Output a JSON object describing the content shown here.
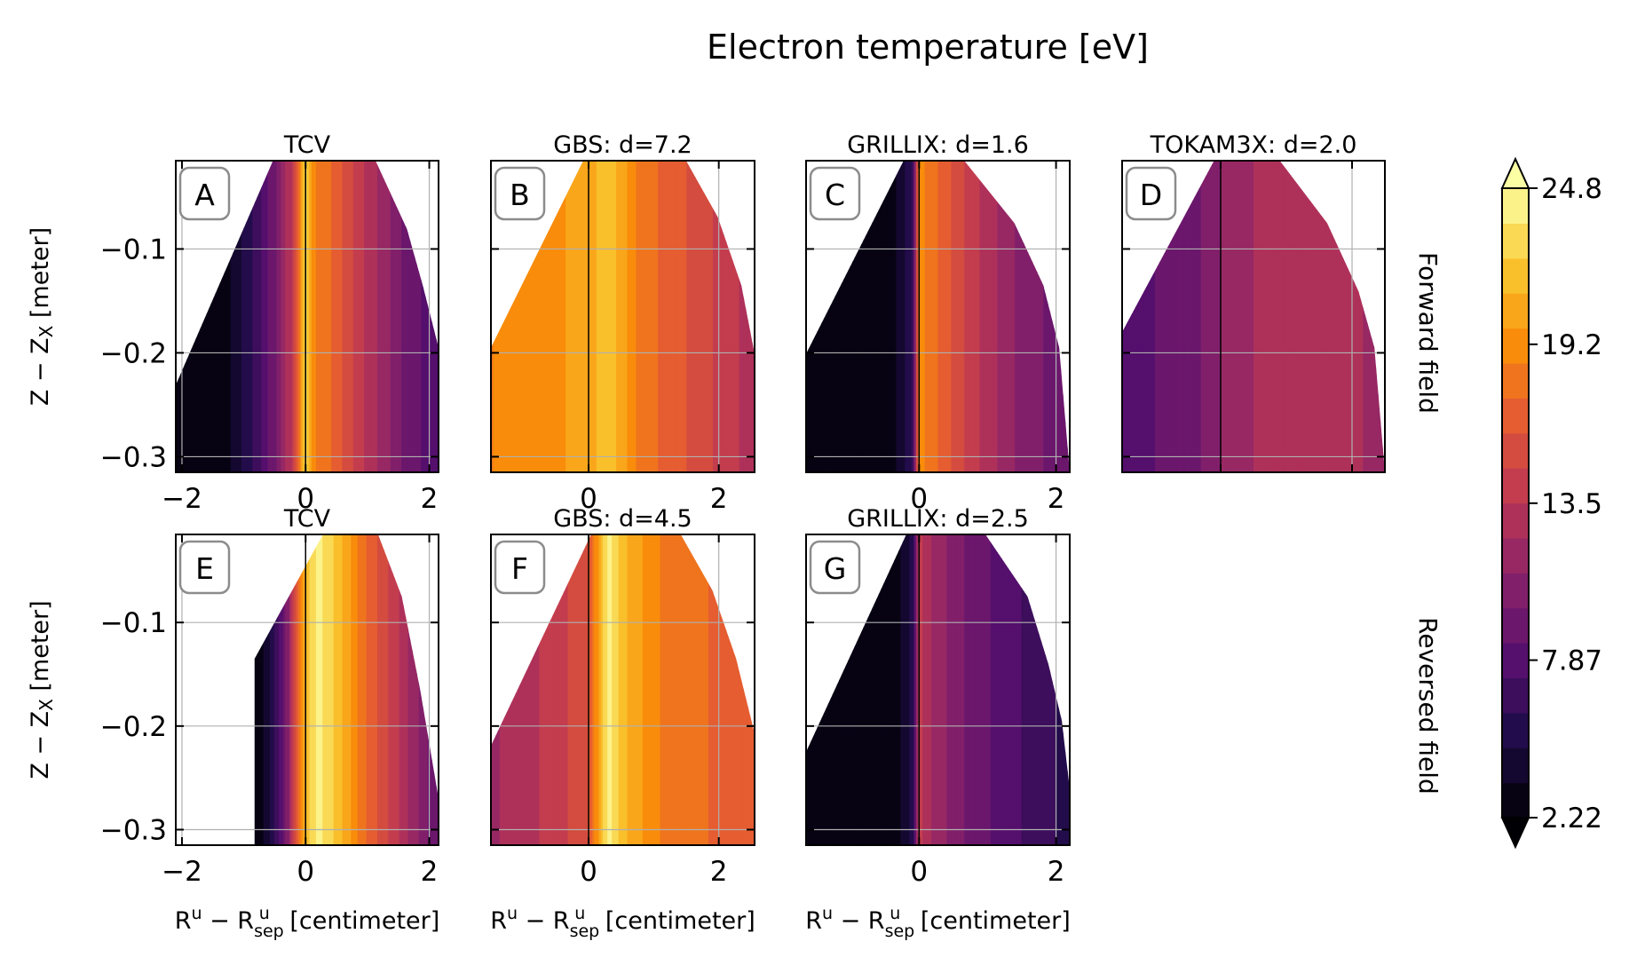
{
  "figure": {
    "title": "Electron temperature [eV]",
    "row_labels": [
      "Forward field",
      "Reversed field"
    ]
  },
  "colorbar": {
    "tick_labels": [
      "24.8",
      "19.2",
      "13.5",
      "7.87",
      "2.22"
    ],
    "tick_values": [
      24.8,
      19.2,
      13.5,
      7.87,
      2.22
    ],
    "min": 2.22,
    "max": 24.8,
    "levels": 18,
    "colormap": "inferno",
    "extend": "both"
  },
  "chart_data": [
    {
      "type": "heatmap",
      "panel": "A",
      "title": "TCV",
      "row": 0,
      "col": 0,
      "xlim": [
        -2.1,
        2.15
      ],
      "ylim": [
        -0.315,
        -0.015
      ],
      "x_tick_labels": [
        "−2",
        "0",
        "2"
      ],
      "x_ticks": [
        -2,
        0,
        2
      ],
      "y_tick_labels": [
        "−0.1",
        "−0.2",
        "−0.3"
      ],
      "y_ticks": [
        -0.1,
        -0.2,
        -0.3
      ],
      "ylabel": "Z − Z",
      "ylabel_sub": "X",
      "ylabel_tail": " [meter]",
      "profile": {
        "x": [
          -2.0,
          -1.2,
          -0.8,
          -0.5,
          -0.2,
          0.0,
          0.15,
          0.4,
          0.8,
          1.2,
          1.6,
          2.0
        ],
        "Te": [
          2.4,
          3.5,
          6.5,
          9.5,
          14.0,
          22.5,
          18.5,
          17.5,
          14.5,
          12.0,
          9.5,
          8.0
        ]
      }
    },
    {
      "type": "heatmap",
      "panel": "B",
      "title": "GBS: d=7.2",
      "row": 0,
      "col": 1,
      "xlim": [
        -1.5,
        2.55
      ],
      "ylim": [
        -0.315,
        -0.015
      ],
      "x_tick_labels": [
        "0",
        "2"
      ],
      "x_ticks": [
        0,
        2
      ],
      "profile": {
        "x": [
          -1.5,
          -0.5,
          0.0,
          0.3,
          0.8,
          1.5,
          2.5
        ],
        "Te": [
          18.5,
          19.5,
          20.5,
          22.0,
          18.0,
          16.0,
          13.0
        ]
      }
    },
    {
      "type": "heatmap",
      "panel": "C",
      "title": "GRILLIX: d=1.6",
      "row": 0,
      "col": 2,
      "xlim": [
        -1.65,
        2.2
      ],
      "ylim": [
        -0.315,
        -0.015
      ],
      "x_tick_labels": [
        "0",
        "2"
      ],
      "x_ticks": [
        0,
        2
      ],
      "profile": {
        "x": [
          -1.6,
          -0.4,
          -0.1,
          0.0,
          0.3,
          0.8,
          1.4,
          2.2
        ],
        "Te": [
          2.3,
          2.6,
          6.0,
          19.0,
          17.0,
          14.0,
          11.0,
          8.5
        ]
      }
    },
    {
      "type": "heatmap",
      "panel": "D",
      "title": "TOKAM3X: d=2.0",
      "row": 0,
      "col": 3,
      "xlim": [
        -1.5,
        2.5
      ],
      "ylim": [
        -0.315,
        -0.015
      ],
      "profile": {
        "x": [
          -1.5,
          -0.5,
          0.0,
          0.6,
          1.2,
          2.5
        ],
        "Te": [
          8.0,
          9.0,
          11.0,
          12.5,
          13.0,
          12.0
        ]
      }
    },
    {
      "type": "heatmap",
      "panel": "E",
      "title": "TCV",
      "row": 1,
      "col": 0,
      "xlim": [
        -2.1,
        2.15
      ],
      "ylim": [
        -0.315,
        -0.015
      ],
      "x_tick_labels": [
        "−2",
        "0",
        "2"
      ],
      "x_ticks": [
        -2,
        0,
        2
      ],
      "y_tick_labels": [
        "−0.1",
        "−0.2",
        "−0.3"
      ],
      "y_ticks": [
        -0.1,
        -0.2,
        -0.3
      ],
      "xlabel": "R",
      "xlabel_sup": "u",
      "xlabel_mid": " − R",
      "xlabel_sub": "sep",
      "xlabel_sup2": "u",
      "xlabel_tail": " [centimeter]",
      "ylabel": "Z − Z",
      "ylabel_sub": "X",
      "ylabel_tail": " [meter]",
      "profile": {
        "x": [
          -0.9,
          -0.6,
          -0.3,
          0.0,
          0.2,
          0.5,
          0.9,
          1.3,
          1.7,
          2.0
        ],
        "Te": [
          2.3,
          4.0,
          10.0,
          21.5,
          24.0,
          22.0,
          18.0,
          15.0,
          12.0,
          9.5
        ]
      }
    },
    {
      "type": "heatmap",
      "panel": "F",
      "title": "GBS: d=4.5",
      "row": 1,
      "col": 1,
      "xlim": [
        -1.5,
        2.55
      ],
      "ylim": [
        -0.315,
        -0.015
      ],
      "x_tick_labels": [
        "0",
        "2"
      ],
      "x_ticks": [
        0,
        2
      ],
      "xlabel": "R",
      "xlabel_sup": "u",
      "xlabel_mid": " − R",
      "xlabel_sub": "sep",
      "xlabel_sup2": "u",
      "xlabel_tail": " [centimeter]",
      "profile": {
        "x": [
          -1.5,
          -0.5,
          0.0,
          0.3,
          0.6,
          1.2,
          2.5
        ],
        "Te": [
          12.0,
          14.0,
          16.0,
          24.0,
          21.0,
          18.0,
          16.5
        ]
      }
    },
    {
      "type": "heatmap",
      "panel": "G",
      "title": "GRILLIX: d=2.5",
      "row": 1,
      "col": 2,
      "xlim": [
        -1.65,
        2.2
      ],
      "ylim": [
        -0.315,
        -0.015
      ],
      "x_tick_labels": [
        "0",
        "2"
      ],
      "x_ticks": [
        0,
        2
      ],
      "xlabel": "R",
      "xlabel_sup": "u",
      "xlabel_mid": " − R",
      "xlabel_sub": "sep",
      "xlabel_sup2": "u",
      "xlabel_tail": " [centimeter]",
      "profile": {
        "x": [
          -1.6,
          -0.4,
          -0.1,
          0.0,
          0.2,
          0.6,
          1.2,
          2.2
        ],
        "Te": [
          2.2,
          2.4,
          5.0,
          14.0,
          12.0,
          10.0,
          8.0,
          5.5
        ]
      }
    }
  ]
}
